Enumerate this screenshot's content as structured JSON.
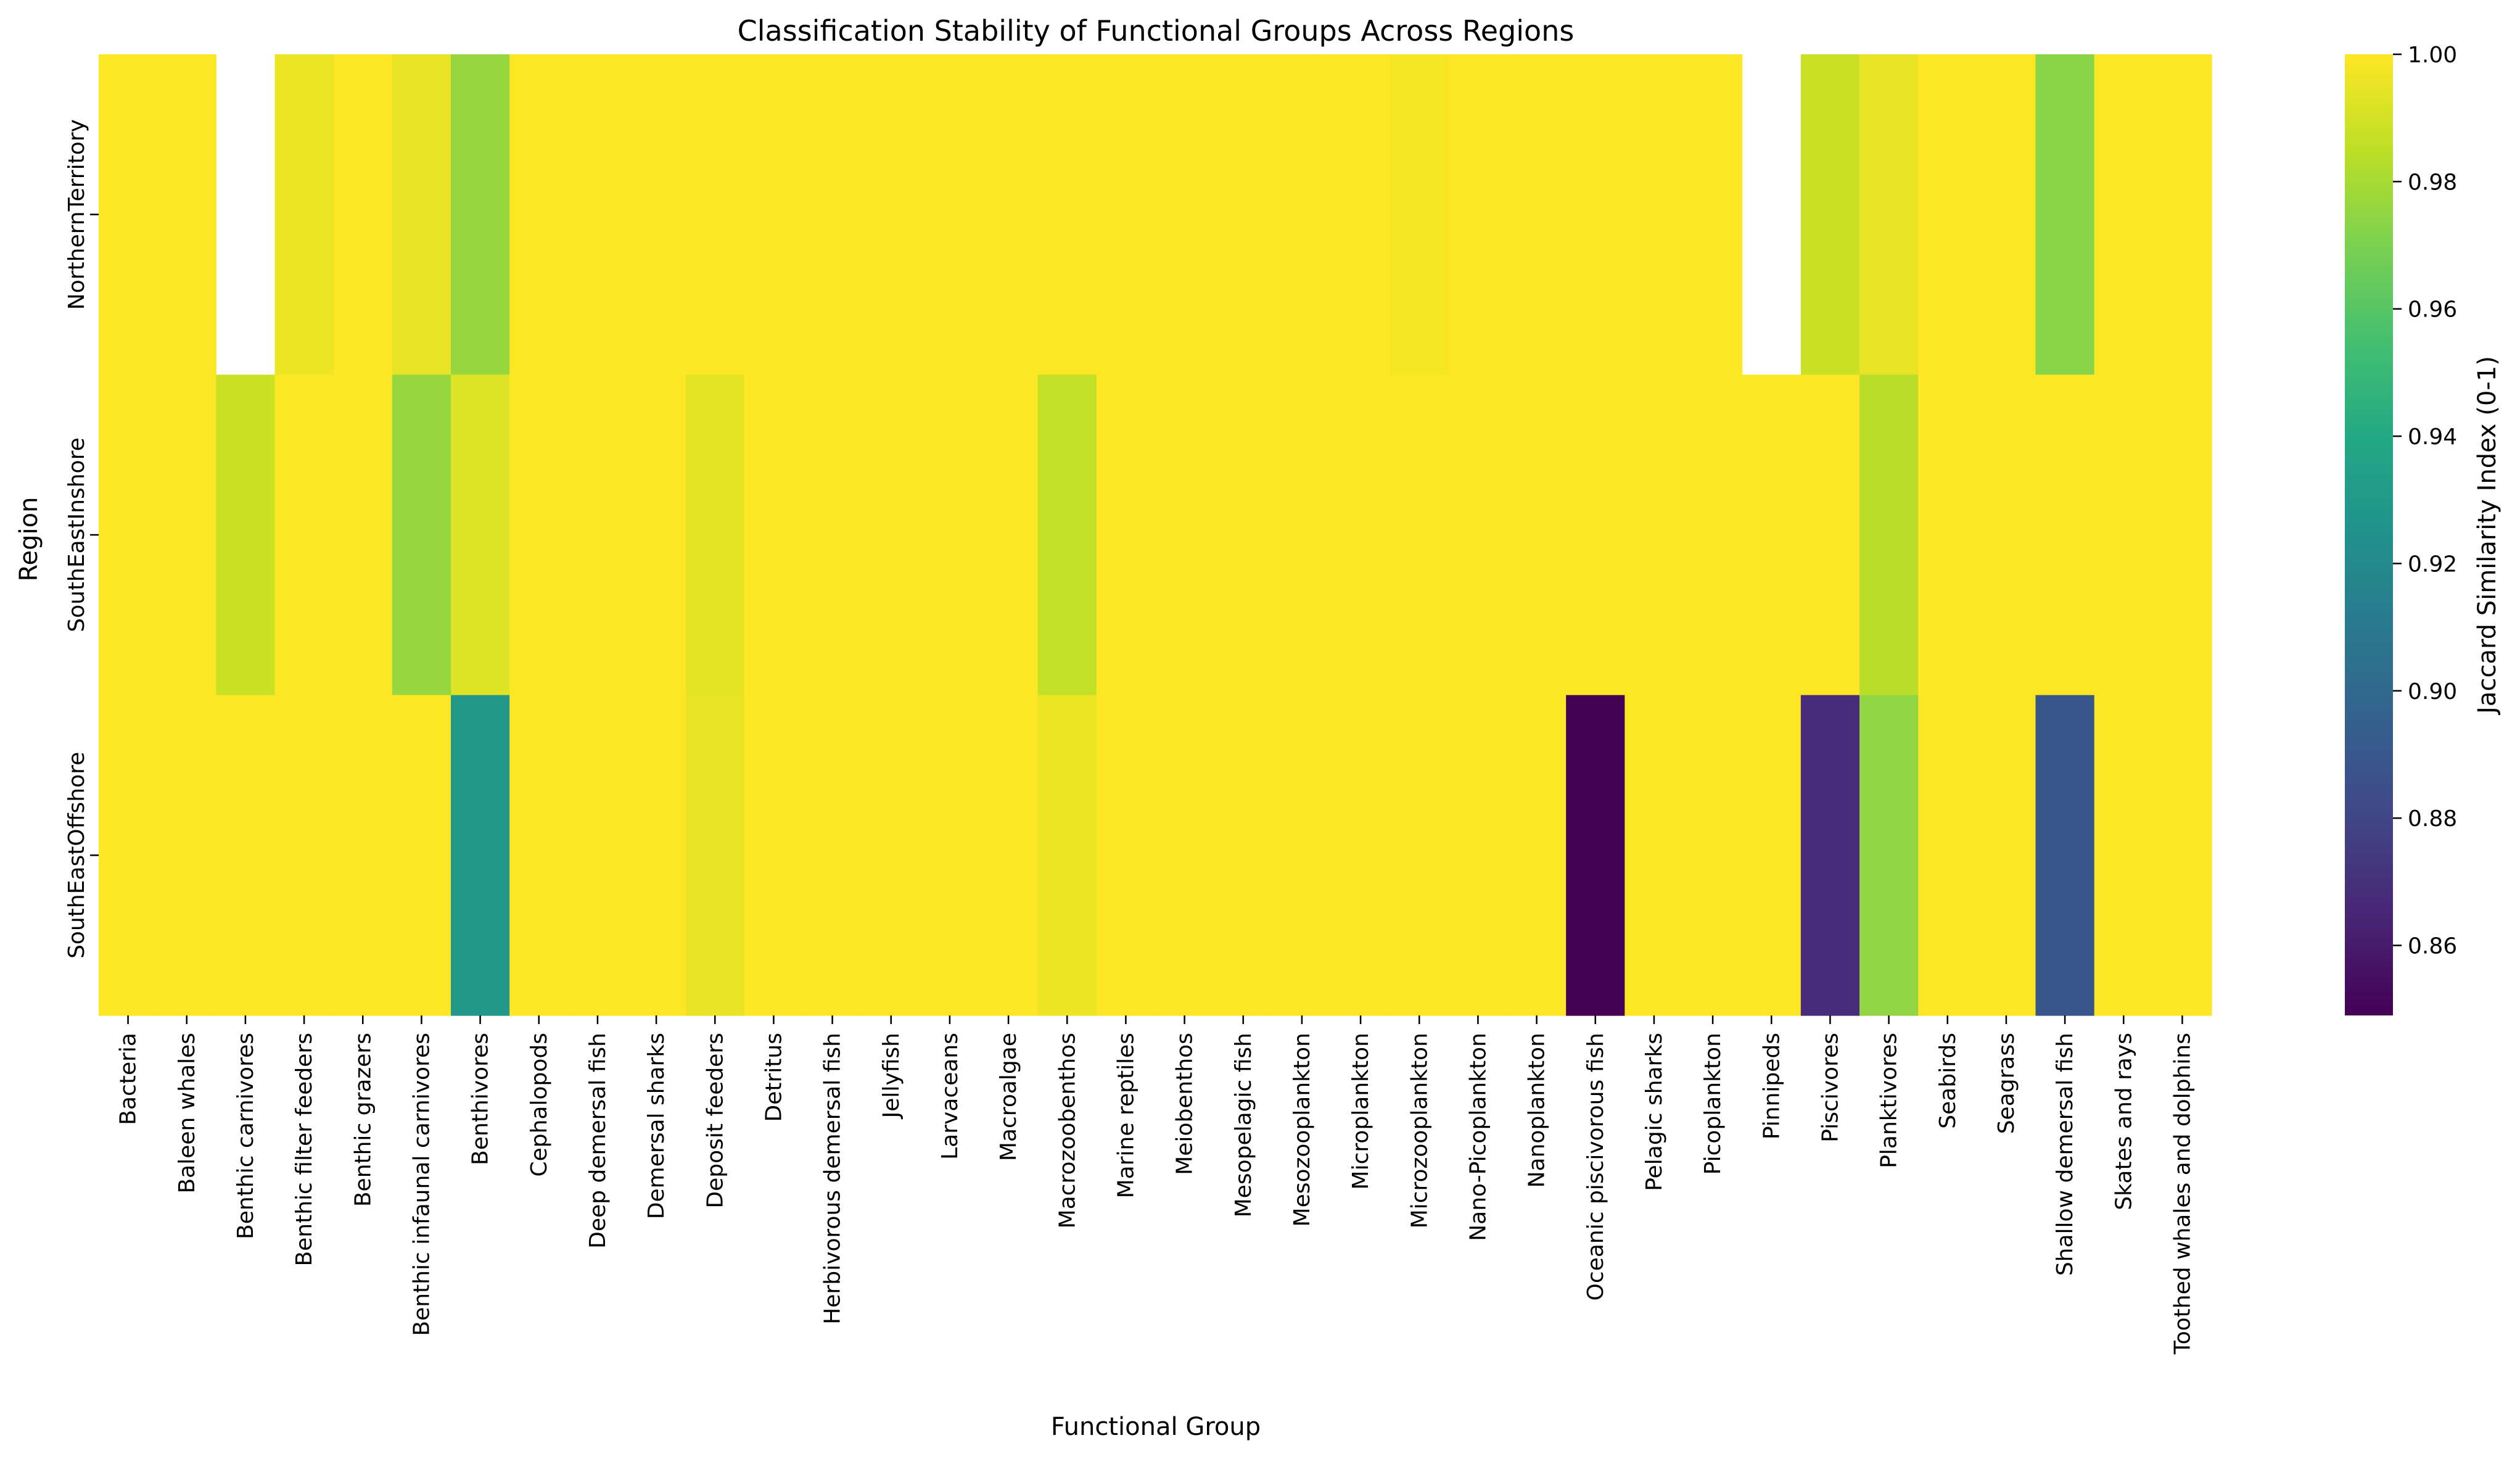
{
  "chart_data": {
    "type": "heatmap",
    "title": "Classification Stability of Functional Groups Across Regions",
    "xlabel": "Functional Group",
    "ylabel": "Region",
    "colorbar_label": "Jaccard Similarity Index (0-1)",
    "colormap": "viridis",
    "vmin": 0.849,
    "vmax": 1.0,
    "colorbar_ticks": [
      "0.86",
      "0.88",
      "0.90",
      "0.92",
      "0.94",
      "0.96",
      "0.98",
      "1.00"
    ],
    "x_categories": [
      "Bacteria",
      "Baleen whales",
      "Benthic carnivores",
      "Benthic filter feeders",
      "Benthic grazers",
      "Benthic infaunal carnivores",
      "Benthivores",
      "Cephalopods",
      "Deep demersal fish",
      "Demersal sharks",
      "Deposit feeders",
      "Detritus",
      "Herbivorous demersal fish",
      "Jellyfish",
      "Larvaceans",
      "Macroalgae",
      "Macrozoobenthos",
      "Marine reptiles",
      "Meiobenthos",
      "Mesopelagic fish",
      "Mesozooplankton",
      "Microplankton",
      "Microzooplankton",
      "Nano-Picoplankton",
      "Nanoplankton",
      "Oceanic piscivorous fish",
      "Pelagic sharks",
      "Picoplankton",
      "Pinnipeds",
      "Piscivores",
      "Planktivores",
      "Seabirds",
      "Seagrass",
      "Shallow demersal fish",
      "Skates and rays",
      "Toothed whales and dolphins"
    ],
    "y_categories": [
      "NorthernTerritory",
      "SouthEastInshore",
      "SouthEastOffshore"
    ],
    "values": [
      [
        1.0,
        1.0,
        null,
        0.996,
        1.0,
        0.995,
        0.976,
        1.0,
        1.0,
        1.0,
        1.0,
        1.0,
        1.0,
        1.0,
        1.0,
        1.0,
        1.0,
        1.0,
        1.0,
        1.0,
        1.0,
        1.0,
        0.998,
        1.0,
        1.0,
        1.0,
        1.0,
        1.0,
        null,
        0.988,
        0.995,
        1.0,
        1.0,
        0.973,
        1.0,
        1.0
      ],
      [
        1.0,
        1.0,
        0.988,
        1.0,
        1.0,
        0.976,
        0.993,
        1.0,
        1.0,
        1.0,
        0.994,
        1.0,
        1.0,
        1.0,
        1.0,
        1.0,
        0.986,
        1.0,
        1.0,
        1.0,
        1.0,
        1.0,
        1.0,
        1.0,
        1.0,
        1.0,
        1.0,
        1.0,
        1.0,
        1.0,
        0.984,
        1.0,
        1.0,
        1.0,
        1.0,
        1.0
      ],
      [
        1.0,
        1.0,
        1.0,
        1.0,
        1.0,
        1.0,
        0.929,
        1.0,
        1.0,
        1.0,
        0.995,
        1.0,
        1.0,
        1.0,
        1.0,
        1.0,
        0.996,
        1.0,
        1.0,
        1.0,
        1.0,
        1.0,
        1.0,
        1.0,
        1.0,
        0.849,
        1.0,
        1.0,
        1.0,
        0.868,
        0.975,
        1.0,
        1.0,
        0.889,
        1.0,
        1.0
      ]
    ]
  }
}
